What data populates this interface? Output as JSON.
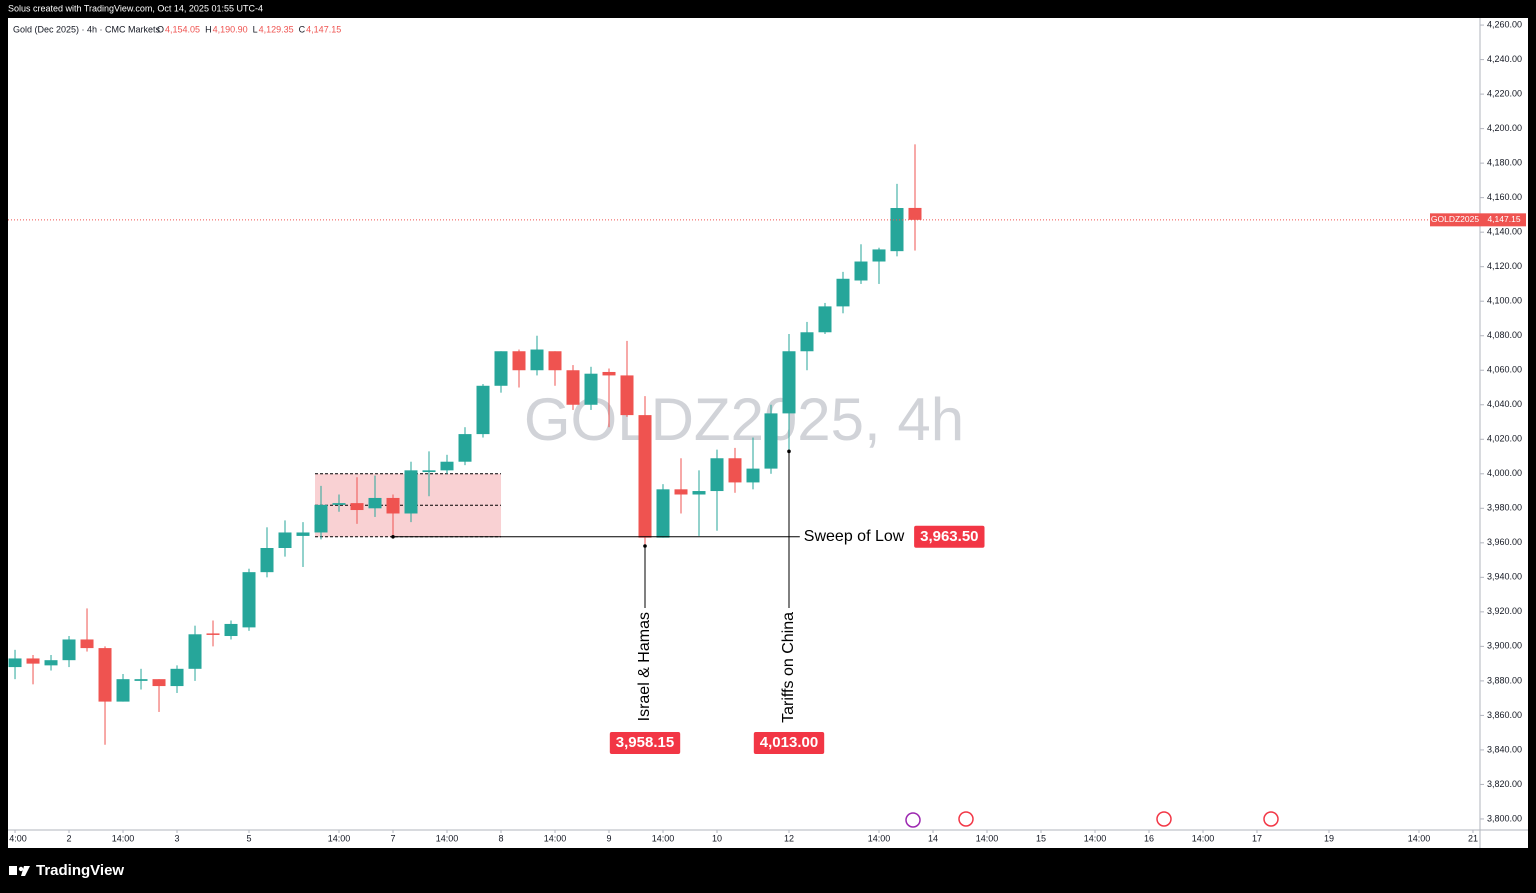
{
  "header": {
    "credit": "Solus created with TradingView.com, Oct 14, 2025 01:55 UTC-4"
  },
  "legend": {
    "symbol": "Gold (Dec 2025) · 4h · CMC Markets",
    "ohlc": [
      {
        "key": "O",
        "label": "4,154.05"
      },
      {
        "key": "H",
        "label": "4,190.90"
      },
      {
        "key": "L",
        "label": "4,129.35"
      },
      {
        "key": "C",
        "label": "4,147.15"
      }
    ]
  },
  "footer": {
    "brand": "TradingView"
  },
  "chart_data": {
    "type": "candlestick",
    "watermark": "GOLDZ2025, 4h",
    "up_color": "#26a69a",
    "down_color": "#ef5350",
    "open": [
      3888,
      3893,
      3889,
      3892,
      3904,
      3899,
      3868,
      3880,
      3881,
      3877,
      3887,
      3907.5,
      3906,
      3911,
      3943,
      3957,
      3964,
      3966,
      3982,
      3983,
      3980,
      3986,
      3977,
      4001,
      4002,
      4007,
      4023,
      4051,
      4071,
      4060,
      4071,
      4060,
      4040,
      4059,
      4057,
      4034,
      3963,
      3991,
      3988,
      3990,
      4009,
      3995,
      4003,
      4035,
      4071,
      4082,
      4097,
      4112,
      4123,
      4129,
      4154.05
    ],
    "high": [
      3898,
      3895,
      3895,
      3906,
      3922,
      3900,
      3884,
      3887,
      3881,
      3889,
      3912,
      3915,
      3915,
      3945,
      3969,
      3973,
      3972,
      3993,
      3988,
      3998,
      3999,
      3988,
      4007,
      4013,
      4011,
      4027,
      4052,
      4071,
      4072,
      4080,
      4071,
      4063,
      4062,
      4061,
      4077,
      4045,
      3994,
      4009,
      4002,
      4014,
      4015,
      4021,
      4040,
      4081,
      4088,
      4099,
      4117,
      4133,
      4131,
      4168,
      4190.9
    ],
    "low": [
      3881,
      3878,
      3886,
      3888,
      3897,
      3843,
      3868,
      3875,
      3862,
      3873,
      3880,
      3900,
      3904,
      3909,
      3940,
      3952,
      3946,
      3962,
      3978,
      3971,
      3975,
      3964,
      3972,
      3987,
      4000,
      4005,
      4021,
      4047,
      4050,
      4057,
      4051,
      4037,
      4037,
      4027,
      4033,
      3958.15,
      3963,
      3977,
      3964,
      3967,
      3989,
      3991,
      4000,
      4013,
      4060,
      4081,
      4093,
      4110,
      4110,
      4126,
      4129.35
    ],
    "close": [
      3893,
      3890,
      3892,
      3904,
      3899,
      3868,
      3881,
      3881,
      3877,
      3887,
      3907,
      3907,
      3913,
      3943,
      3957,
      3966,
      3966,
      3982,
      3983,
      3979,
      3986,
      3977,
      4002,
      4002,
      4007,
      4023,
      4051,
      4071,
      4060,
      4072,
      4060,
      4040,
      4058,
      4057,
      4034,
      3963,
      3991,
      3988,
      3990,
      4009,
      3995,
      4003,
      4035,
      4071,
      4082,
      4097,
      4113,
      4123,
      4130,
      4154,
      4147.15
    ],
    "xlim": [
      -0.39,
      81.39
    ],
    "xticks": [
      {
        "value": 0,
        "label": "4:00"
      },
      {
        "value": 3,
        "label": "2"
      },
      {
        "value": 6,
        "label": "14:00"
      },
      {
        "value": 9,
        "label": "3"
      },
      {
        "value": 13,
        "label": "5"
      },
      {
        "value": 18,
        "label": "14:00"
      },
      {
        "value": 21,
        "label": "7"
      },
      {
        "value": 24,
        "label": "14:00"
      },
      {
        "value": 27,
        "label": "8"
      },
      {
        "value": 30,
        "label": "14:00"
      },
      {
        "value": 33,
        "label": "9"
      },
      {
        "value": 36,
        "label": "14:00"
      },
      {
        "value": 39,
        "label": "10"
      },
      {
        "value": 43,
        "label": "12"
      },
      {
        "value": 48,
        "label": "14:00"
      },
      {
        "value": 51,
        "label": "14"
      },
      {
        "value": 54,
        "label": "14:00"
      },
      {
        "value": 57,
        "label": "15"
      },
      {
        "value": 60,
        "label": "14:00"
      },
      {
        "value": 63,
        "label": "16"
      },
      {
        "value": 66,
        "label": "14:00"
      },
      {
        "value": 69,
        "label": "17"
      },
      {
        "value": 73,
        "label": "19"
      },
      {
        "value": 78,
        "label": "14:00"
      },
      {
        "value": 81,
        "label": "21"
      }
    ],
    "ylim": [
      3793.6,
      4264.1
    ],
    "yticks": [
      {
        "value": 3800,
        "label": "3,800.00"
      },
      {
        "value": 3820,
        "label": "3,820.00"
      },
      {
        "value": 3840,
        "label": "3,840.00"
      },
      {
        "value": 3860,
        "label": "3,860.00"
      },
      {
        "value": 3880,
        "label": "3,880.00"
      },
      {
        "value": 3900,
        "label": "3,900.00"
      },
      {
        "value": 3920,
        "label": "3,920.00"
      },
      {
        "value": 3940,
        "label": "3,940.00"
      },
      {
        "value": 3960,
        "label": "3,960.00"
      },
      {
        "value": 3980,
        "label": "3,980.00"
      },
      {
        "value": 4000,
        "label": "4,000.00"
      },
      {
        "value": 4020,
        "label": "4,020.00"
      },
      {
        "value": 4040,
        "label": "4,040.00"
      },
      {
        "value": 4060,
        "label": "4,060.00"
      },
      {
        "value": 4080,
        "label": "4,080.00"
      },
      {
        "value": 4100,
        "label": "4,100.00"
      },
      {
        "value": 4120,
        "label": "4,120.00"
      },
      {
        "value": 4140,
        "label": "4,140.00"
      },
      {
        "value": 4160,
        "label": "4,160.00"
      },
      {
        "value": 4180,
        "label": "4,180.00"
      },
      {
        "value": 4200,
        "label": "4,200.00"
      },
      {
        "value": 4220,
        "label": "4,220.00"
      },
      {
        "value": 4240,
        "label": "4,240.00"
      },
      {
        "value": 4260,
        "label": "4,260.00"
      }
    ],
    "price_line": {
      "name": "GOLDZ2025",
      "value": 4147.15,
      "label": "4,147.15"
    },
    "zone": {
      "start": 17,
      "end": 27,
      "top": 4000,
      "mid": 3981.75,
      "bottom": 3963.5
    },
    "annotations": [
      {
        "text": "Sweep of Low",
        "value": 3963.5,
        "label": "3,963.50",
        "x_start": 21,
        "x_end": 43.6
      },
      {
        "text": "Israel & Hamas",
        "value": 3958.15,
        "label": "3,958.15",
        "x": 35
      },
      {
        "text": "Tariffs on China",
        "value": 4013,
        "label": "4,013.00",
        "x": 43
      }
    ]
  }
}
